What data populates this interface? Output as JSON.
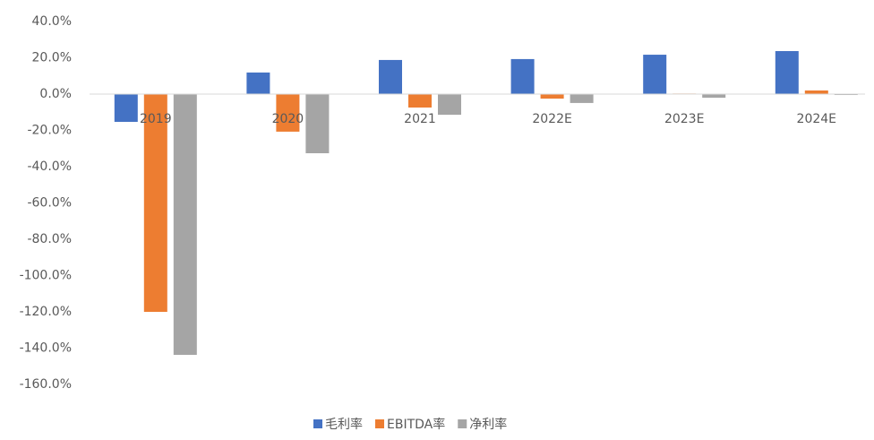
{
  "chart_data": {
    "type": "bar",
    "categories": [
      "2019",
      "2020",
      "2021",
      "2022E",
      "2023E",
      "2024E"
    ],
    "series": [
      {
        "name": "毛利率",
        "color": "#4472c4",
        "values": [
          -15.3,
          11.9,
          18.8,
          19.3,
          21.7,
          23.7
        ]
      },
      {
        "name": "EBITDA率",
        "color": "#ed7d31",
        "values": [
          -120.0,
          -20.7,
          -7.4,
          -2.5,
          0.3,
          2.0
        ]
      },
      {
        "name": "净利率",
        "color": "#a5a5a5",
        "values": [
          -143.7,
          -32.6,
          -11.4,
          -4.9,
          -2.0,
          -0.5
        ]
      }
    ],
    "ylim": [
      -160,
      40
    ],
    "yticks": [
      {
        "value": 40,
        "label": "40.0%"
      },
      {
        "value": 20,
        "label": "20.0%"
      },
      {
        "value": 0,
        "label": "0.0%"
      },
      {
        "value": -20,
        "label": "-20.0%"
      },
      {
        "value": -40,
        "label": "-40.0%"
      },
      {
        "value": -60,
        "label": "-60.0%"
      },
      {
        "value": -80,
        "label": "-80.0%"
      },
      {
        "value": -100,
        "label": "-100.0%"
      },
      {
        "value": -120,
        "label": "-120.0%"
      },
      {
        "value": -140,
        "label": "-140.0%"
      },
      {
        "value": -160,
        "label": "-160.0%"
      }
    ],
    "grid": false,
    "legend": "bottom"
  }
}
